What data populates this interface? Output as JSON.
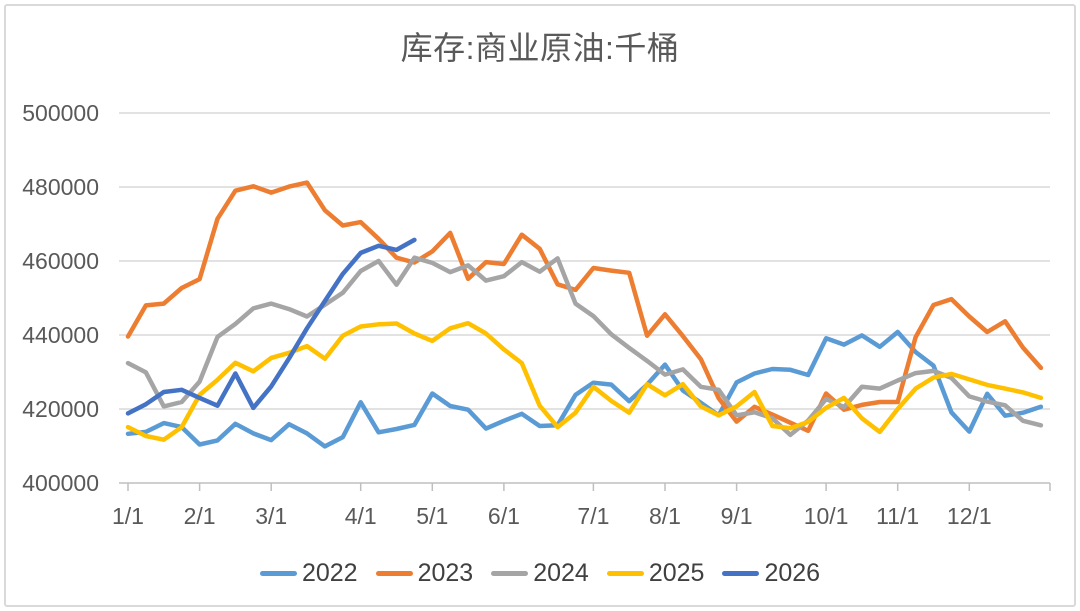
{
  "chart_data": {
    "type": "line",
    "title": "库存:商业原油:千桶",
    "unit": "千桶",
    "frequency": "weekly",
    "grid": "horizontal",
    "legend_position": "bottom",
    "x_axis": {
      "tick_labels": [
        "1/1",
        "2/1",
        "3/1",
        "4/1",
        "5/1",
        "6/1",
        "7/1",
        "8/1",
        "9/1",
        "10/1",
        "11/1",
        "12/1"
      ]
    },
    "y_axis": {
      "ticks": [
        400000,
        420000,
        440000,
        460000,
        480000,
        500000
      ],
      "lim": [
        400000,
        500000
      ]
    },
    "series": [
      {
        "name": "2022",
        "color": "#5B9BD5",
        "values": [
          413300,
          413800,
          416200,
          415100,
          410400,
          411500,
          416000,
          413400,
          411600,
          415900,
          413400,
          409900,
          412400,
          421800,
          413700,
          414600,
          415700,
          424200,
          420800,
          419800,
          414700,
          416800,
          418700,
          415400,
          415600,
          423800,
          427100,
          426600,
          422100,
          426600,
          432000,
          425000,
          421700,
          418300,
          427200,
          429600,
          430800,
          430600,
          429200,
          439100,
          437400,
          439900,
          436800,
          440800,
          435400,
          431700,
          419100,
          413900,
          424100,
          418200,
          419000,
          420600
        ]
      },
      {
        "name": "2023",
        "color": "#ED7D31",
        "values": [
          439600,
          448000,
          448500,
          452700,
          455100,
          471400,
          479000,
          480200,
          478500,
          480100,
          481200,
          473700,
          469600,
          470500,
          466000,
          460900,
          459600,
          462600,
          467600,
          455200,
          459700,
          459200,
          467100,
          463300,
          453700,
          452200,
          458100,
          457400,
          456800,
          439800,
          445600,
          439700,
          433500,
          422900,
          416600,
          420600,
          418500,
          416300,
          414100,
          424200,
          419800,
          421100,
          421900,
          421900,
          439400,
          448100,
          449700,
          445000,
          440800,
          443700,
          436600,
          431100
        ]
      },
      {
        "name": "2024",
        "color": "#A5A5A5",
        "values": [
          432400,
          429900,
          420700,
          421900,
          427400,
          439500,
          443000,
          447200,
          448500,
          447000,
          445000,
          448200,
          451400,
          457300,
          460000,
          453600,
          460900,
          459500,
          457000,
          458800,
          454700,
          455900,
          459700,
          457100,
          460700,
          448500,
          445100,
          440200,
          436500,
          433000,
          429300,
          430700,
          426000,
          425200,
          418300,
          419100,
          417500,
          413000,
          416900,
          422700,
          420500,
          426000,
          425500,
          427700,
          429700,
          430300,
          428400,
          423400,
          422000,
          421000,
          416800,
          415600
        ]
      },
      {
        "name": "2025",
        "color": "#FFC000",
        "values": [
          415100,
          412700,
          411700,
          415100,
          423800,
          427900,
          432500,
          430200,
          433800,
          435200,
          437000,
          433600,
          439800,
          442300,
          442900,
          443100,
          440400,
          438400,
          441800,
          443200,
          440400,
          436100,
          432400,
          420900,
          415100,
          419000,
          426000,
          422200,
          419000,
          426700,
          423700,
          426700,
          420700,
          418300,
          420700,
          424600,
          415400,
          414800,
          416500,
          420300,
          423000,
          417500,
          413800,
          420000,
          425500,
          428500,
          429500,
          428000,
          426500,
          425500,
          424500,
          423000
        ]
      },
      {
        "name": "2026",
        "color": "#4472C4",
        "values": [
          418800,
          421300,
          424600,
          425200,
          423000,
          420900,
          429600,
          420300,
          426100,
          433700,
          441800,
          449200,
          456500,
          462200,
          464100,
          463000,
          465700
        ]
      }
    ]
  },
  "theme": {
    "background": "#FFFFFF",
    "card_border": "#D9D9D9",
    "gridline": "#D9D9D9",
    "axis_line": "#BFBFBF",
    "axis_label": "#595959",
    "title_color": "#595959",
    "legend_text": "#404040"
  }
}
